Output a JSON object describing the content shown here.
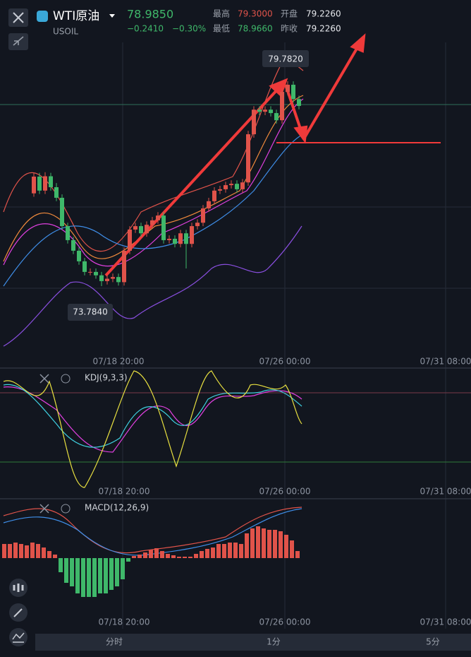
{
  "header": {
    "title": "WTI原油",
    "symbol": "USOIL",
    "price": "78.9850",
    "change": "−0.2410",
    "change_pct": "−0.30%",
    "stats": [
      {
        "label": "最高",
        "value": "79.3000"
      },
      {
        "label": "开盘",
        "value": "79.2260"
      },
      {
        "label": "最低",
        "value": "78.9660"
      },
      {
        "label": "昨收",
        "value": "79.2260"
      }
    ]
  },
  "main_chart": {
    "type": "candlestick",
    "high_label": "79.7820",
    "low_label": "73.7840",
    "open": [
      76.5,
      76.99,
      76.58,
      77.0,
      76.68,
      76.37,
      75.54,
      75.13,
      74.82,
      74.51,
      74.2,
      74.2,
      74.1,
      73.93,
      74.0,
      74.05,
      73.9,
      74.82,
      75.44,
      75.54,
      75.33,
      75.58,
      75.71,
      75.85,
      75.13,
      75.17,
      75.02,
      75.33,
      75.02,
      75.54,
      75.64,
      76.06,
      76.27,
      76.58,
      76.62,
      76.74,
      76.78,
      76.62,
      76.82,
      78.23,
      78.95,
      78.89,
      78.95,
      78.85,
      78.64,
      79.47,
      79.68,
      79.26
    ],
    "high": [
      77.1,
      77.1,
      77.12,
      77.1,
      76.8,
      76.47,
      75.64,
      75.23,
      74.92,
      74.61,
      74.3,
      74.3,
      74.2,
      74.1,
      74.15,
      74.15,
      74.92,
      75.54,
      75.64,
      75.64,
      75.68,
      75.81,
      75.95,
      75.95,
      75.27,
      75.27,
      75.43,
      75.43,
      75.64,
      75.74,
      76.16,
      76.37,
      76.68,
      76.72,
      76.84,
      76.88,
      76.88,
      76.92,
      78.33,
      79.05,
      79.05,
      79.05,
      79.05,
      78.95,
      79.57,
      79.782,
      79.78,
      79.36
    ],
    "low": [
      76.4,
      76.48,
      76.48,
      76.58,
      76.27,
      75.44,
      75.03,
      74.72,
      74.41,
      74.1,
      74.1,
      74.0,
      73.784,
      73.83,
      73.9,
      73.8,
      73.8,
      74.72,
      75.34,
      75.23,
      75.23,
      75.48,
      75.61,
      75.03,
      75.03,
      74.92,
      74.92,
      74.3,
      74.92,
      75.44,
      75.54,
      75.96,
      76.17,
      76.48,
      76.52,
      76.64,
      76.52,
      76.52,
      76.72,
      78.13,
      78.79,
      78.79,
      78.75,
      78.54,
      78.54,
      79.37,
      79.16,
      78.96
    ],
    "close": [
      76.99,
      76.58,
      77.0,
      76.68,
      76.37,
      75.54,
      75.13,
      74.82,
      74.51,
      74.2,
      74.2,
      74.1,
      73.93,
      74.0,
      74.05,
      73.9,
      74.82,
      75.44,
      75.54,
      75.33,
      75.58,
      75.71,
      75.85,
      75.13,
      75.17,
      75.02,
      75.33,
      75.02,
      75.54,
      75.64,
      76.06,
      76.27,
      76.58,
      76.62,
      76.74,
      76.78,
      76.62,
      76.82,
      78.23,
      78.95,
      78.89,
      78.95,
      78.85,
      78.64,
      79.47,
      79.68,
      79.26,
      79.06
    ],
    "time_labels": [
      "07/18 20:00",
      "07/26 00:00",
      "07/31 08:00"
    ]
  },
  "kdj": {
    "label": "KDJ(9,3,3)",
    "time_labels": [
      "07/18 20:00",
      "07/26 00:00",
      "07/31 08:00"
    ]
  },
  "macd": {
    "label": "MACD(12,26,9)",
    "time_labels": [
      "07/18 20:00",
      "07/26 00:00",
      "07/31 08:00"
    ],
    "histogram": [
      0.2,
      0.2,
      0.22,
      0.2,
      0.18,
      0.22,
      0.2,
      0.15,
      0.1,
      0.05,
      -0.2,
      -0.35,
      -0.4,
      -0.5,
      -0.55,
      -0.55,
      -0.55,
      -0.5,
      -0.5,
      -0.45,
      -0.4,
      -0.3,
      -0.05,
      0.03,
      0.05,
      0.08,
      0.12,
      0.14,
      0.1,
      0.06,
      0.04,
      0.02,
      0.02,
      0.02,
      0.06,
      0.1,
      0.13,
      0.15,
      0.2,
      0.2,
      0.22,
      0.22,
      0.2,
      0.35,
      0.42,
      0.45,
      0.42,
      0.4,
      0.4,
      0.38,
      0.33,
      0.25,
      0.1
    ]
  },
  "tabs": [
    "分时",
    "1分",
    "5分"
  ]
}
